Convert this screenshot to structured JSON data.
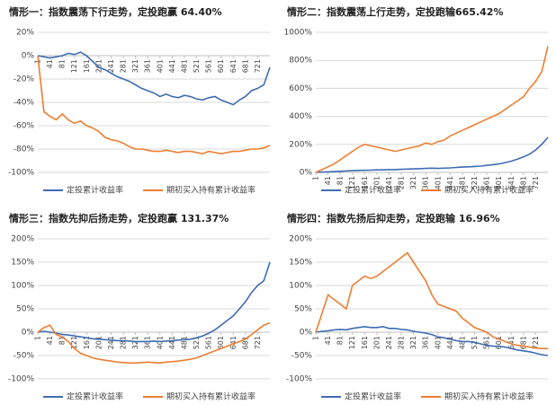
{
  "chart_data": [
    {
      "type": "line",
      "title": "情形一：指数震荡下行走势，定投跑赢 64.40%",
      "x": [
        1,
        21,
        41,
        61,
        81,
        101,
        121,
        141,
        161,
        181,
        201,
        221,
        241,
        261,
        281,
        301,
        321,
        341,
        361,
        381,
        401,
        421,
        441,
        461,
        481,
        501,
        521,
        541,
        561,
        581,
        601,
        621,
        641,
        661,
        681,
        701,
        721,
        741,
        761
      ],
      "xlim": [
        1,
        761
      ],
      "xticks": [
        1,
        41,
        81,
        121,
        161,
        201,
        241,
        281,
        321,
        361,
        401,
        441,
        481,
        521,
        561,
        601,
        641,
        681,
        721
      ],
      "ylim": [
        -100,
        20
      ],
      "yticks": [
        {
          "value": -100,
          "label": "-100%"
        },
        {
          "value": -80,
          "label": "-80%"
        },
        {
          "value": -60,
          "label": "-60%"
        },
        {
          "value": -40,
          "label": "-40%"
        },
        {
          "value": -20,
          "label": "-20%"
        },
        {
          "value": 0,
          "label": "0%"
        },
        {
          "value": 20,
          "label": "20%"
        }
      ],
      "grid": true,
      "legend": "bottom",
      "series": [
        {
          "name": "定投累计收益率",
          "color": "#3e6cb3",
          "values": [
            0,
            -1,
            -2,
            -1,
            0,
            2,
            1,
            3,
            0,
            -5,
            -10,
            -12,
            -15,
            -18,
            -20,
            -22,
            -25,
            -28,
            -30,
            -32,
            -35,
            -33,
            -35,
            -36,
            -34,
            -35,
            -37,
            -38,
            -36,
            -35,
            -38,
            -40,
            -42,
            -38,
            -35,
            -30,
            -28,
            -25,
            -10
          ]
        },
        {
          "name": "期初买入持有累计收益率",
          "color": "#ed7d31",
          "values": [
            0,
            -48,
            -52,
            -55,
            -50,
            -55,
            -58,
            -56,
            -60,
            -62,
            -65,
            -70,
            -72,
            -73,
            -75,
            -78,
            -80,
            -80,
            -81,
            -82,
            -82,
            -81,
            -82,
            -83,
            -82,
            -82,
            -83,
            -84,
            -82,
            -83,
            -84,
            -83,
            -82,
            -82,
            -81,
            -80,
            -80,
            -79,
            -77
          ]
        }
      ]
    },
    {
      "type": "line",
      "title": "情形二：指数震荡上行走势，定投跑输665.42%",
      "x": [
        1,
        21,
        41,
        61,
        81,
        101,
        121,
        141,
        161,
        181,
        201,
        221,
        241,
        261,
        281,
        301,
        321,
        341,
        361,
        381,
        401,
        421,
        441,
        461,
        481,
        501,
        521,
        541,
        561,
        581,
        601,
        621,
        641,
        661,
        681,
        701,
        721,
        741,
        761
      ],
      "xlim": [
        1,
        761
      ],
      "xticks": [
        1,
        41,
        81,
        121,
        161,
        201,
        241,
        281,
        321,
        361,
        401,
        441,
        481,
        521,
        561,
        601,
        641,
        681,
        721
      ],
      "ylim": [
        0,
        1000
      ],
      "yticks": [
        {
          "value": 0,
          "label": "0%"
        },
        {
          "value": 200,
          "label": "200%"
        },
        {
          "value": 400,
          "label": "400%"
        },
        {
          "value": 600,
          "label": "600%"
        },
        {
          "value": 800,
          "label": "800%"
        },
        {
          "value": 1000,
          "label": "1000%"
        }
      ],
      "grid": true,
      "legend": "bottom",
      "series": [
        {
          "name": "定投累计收益率",
          "color": "#3e6cb3",
          "values": [
            0,
            2,
            4,
            6,
            8,
            10,
            12,
            14,
            15,
            16,
            18,
            18,
            20,
            20,
            22,
            24,
            25,
            26,
            28,
            30,
            28,
            30,
            32,
            35,
            38,
            40,
            42,
            45,
            50,
            55,
            60,
            70,
            80,
            95,
            110,
            130,
            160,
            200,
            250
          ]
        },
        {
          "name": "期初买入持有累计收益率",
          "color": "#ed7d31",
          "values": [
            0,
            20,
            40,
            60,
            90,
            120,
            150,
            180,
            200,
            190,
            180,
            170,
            160,
            150,
            160,
            170,
            180,
            190,
            210,
            200,
            220,
            230,
            260,
            280,
            300,
            320,
            340,
            360,
            380,
            400,
            420,
            450,
            480,
            510,
            540,
            600,
            650,
            720,
            900
          ]
        }
      ]
    },
    {
      "type": "line",
      "title": "情形三：指数先抑后扬走势，定投跑赢 131.37%",
      "x": [
        1,
        21,
        41,
        61,
        81,
        101,
        121,
        141,
        161,
        181,
        201,
        221,
        241,
        261,
        281,
        301,
        321,
        341,
        361,
        381,
        401,
        421,
        441,
        461,
        481,
        501,
        521,
        541,
        561,
        581,
        601,
        621,
        641,
        661,
        681,
        701,
        721,
        741,
        761
      ],
      "xlim": [
        1,
        761
      ],
      "xticks": [
        1,
        41,
        81,
        121,
        161,
        201,
        241,
        281,
        321,
        361,
        401,
        441,
        481,
        521,
        561,
        601,
        641,
        681,
        721
      ],
      "ylim": [
        -100,
        200
      ],
      "yticks": [
        {
          "value": -100,
          "label": "-100%"
        },
        {
          "value": -50,
          "label": "-50%"
        },
        {
          "value": 0,
          "label": "0%"
        },
        {
          "value": 50,
          "label": "50%"
        },
        {
          "value": 100,
          "label": "100%"
        },
        {
          "value": 150,
          "label": "150%"
        },
        {
          "value": 200,
          "label": "200%"
        }
      ],
      "grid": true,
      "legend": "bottom",
      "series": [
        {
          "name": "定投累计收益率",
          "color": "#3e6cb3",
          "values": [
            0,
            2,
            0,
            -2,
            -5,
            -6,
            -8,
            -10,
            -12,
            -14,
            -15,
            -16,
            -17,
            -18,
            -18,
            -19,
            -20,
            -20,
            -20,
            -19,
            -20,
            -19,
            -18,
            -17,
            -16,
            -15,
            -12,
            -8,
            -2,
            5,
            15,
            25,
            35,
            50,
            65,
            85,
            100,
            110,
            150
          ]
        },
        {
          "name": "期初买入持有累计收益率",
          "color": "#ed7d31",
          "values": [
            0,
            10,
            15,
            -5,
            -10,
            -20,
            -35,
            -45,
            -50,
            -55,
            -58,
            -60,
            -62,
            -64,
            -65,
            -66,
            -66,
            -65,
            -64,
            -65,
            -66,
            -64,
            -63,
            -62,
            -60,
            -58,
            -55,
            -50,
            -45,
            -40,
            -35,
            -30,
            -25,
            -20,
            -15,
            -5,
            5,
            15,
            20
          ]
        }
      ]
    },
    {
      "type": "line",
      "title": "情形四：指数先扬后抑走势，定投跑输 16.96%",
      "x": [
        1,
        21,
        41,
        61,
        81,
        101,
        121,
        141,
        161,
        181,
        201,
        221,
        241,
        261,
        281,
        301,
        321,
        341,
        361,
        381,
        401,
        421,
        441,
        461,
        481,
        501,
        521,
        541,
        561,
        581,
        601,
        621,
        641,
        661,
        681,
        701,
        721,
        741,
        761
      ],
      "xlim": [
        1,
        761
      ],
      "xticks": [
        1,
        41,
        81,
        121,
        161,
        201,
        241,
        281,
        321,
        361,
        401,
        441,
        481,
        521,
        561,
        601,
        641,
        681,
        721
      ],
      "ylim": [
        -100,
        200
      ],
      "yticks": [
        {
          "value": -100,
          "label": "-100%"
        },
        {
          "value": -50,
          "label": "-50%"
        },
        {
          "value": 0,
          "label": "0%"
        },
        {
          "value": 50,
          "label": "50%"
        },
        {
          "value": 100,
          "label": "100%"
        },
        {
          "value": 150,
          "label": "150%"
        },
        {
          "value": 200,
          "label": "200%"
        }
      ],
      "grid": true,
      "legend": "bottom",
      "series": [
        {
          "name": "定投累计收益率",
          "color": "#3e6cb3",
          "values": [
            0,
            2,
            3,
            5,
            6,
            5,
            8,
            10,
            12,
            10,
            10,
            12,
            8,
            8,
            6,
            5,
            2,
            0,
            -2,
            -5,
            -10,
            -12,
            -15,
            -18,
            -20,
            -20,
            -22,
            -25,
            -28,
            -30,
            -30,
            -32,
            -35,
            -38,
            -40,
            -42,
            -45,
            -48,
            -50
          ]
        },
        {
          "name": "期初买入持有累计收益率",
          "color": "#ed7d31",
          "values": [
            0,
            40,
            80,
            70,
            60,
            50,
            100,
            110,
            120,
            115,
            120,
            130,
            140,
            150,
            160,
            170,
            150,
            130,
            110,
            80,
            60,
            55,
            50,
            45,
            30,
            20,
            10,
            5,
            0,
            -10,
            -15,
            -20,
            -25,
            -28,
            -30,
            -32,
            -34,
            -35,
            -35
          ]
        }
      ]
    }
  ]
}
